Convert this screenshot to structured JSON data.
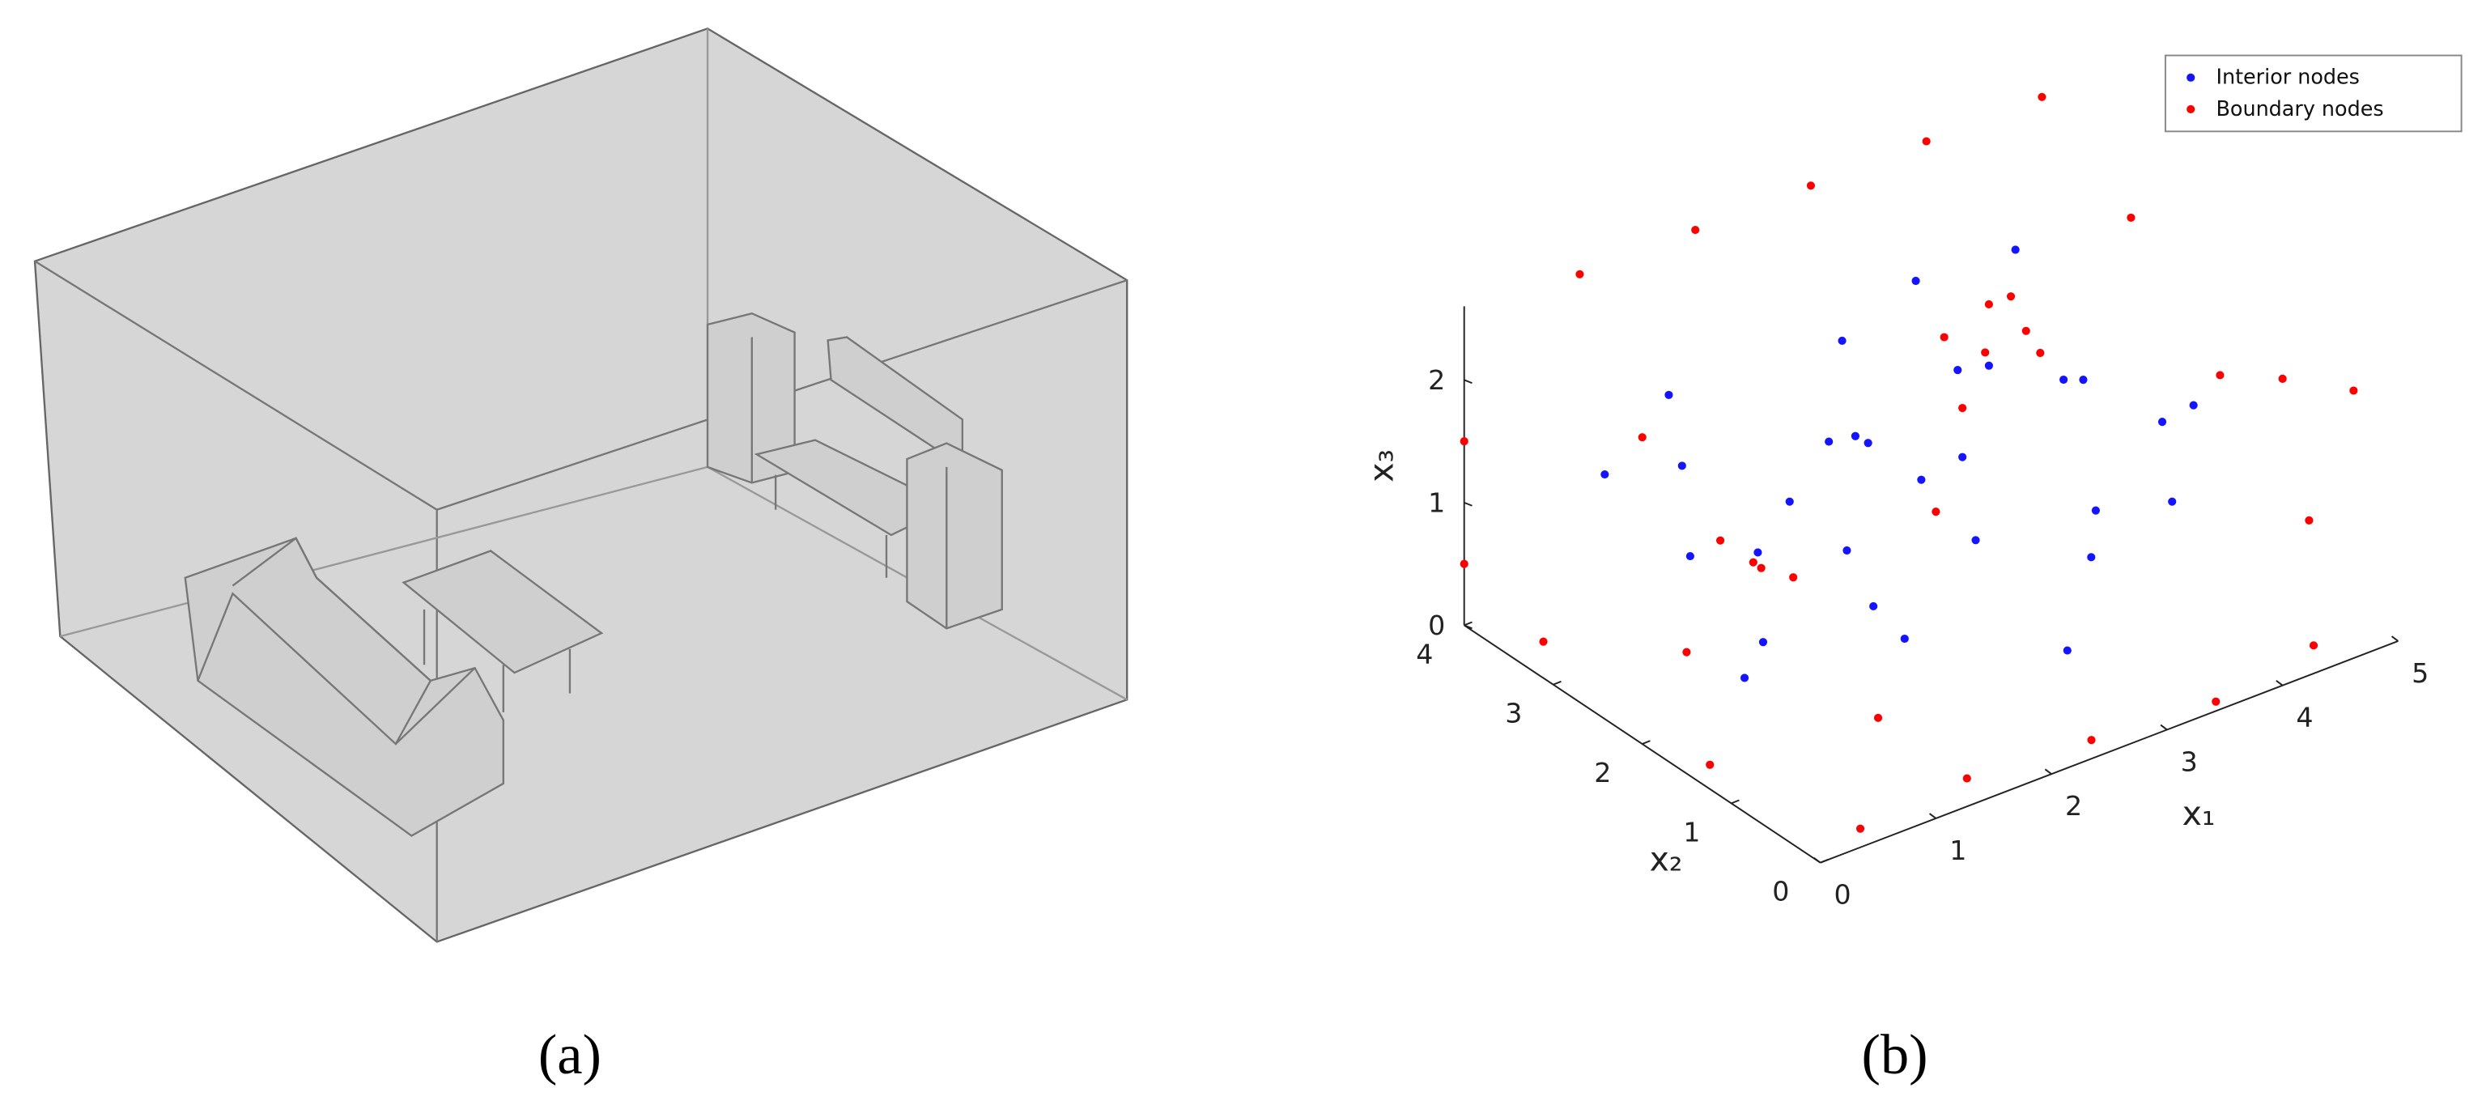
{
  "panel_labels": [
    "(a)",
    "(b)"
  ],
  "chart_data": {
    "type": "scatter3d",
    "xlabel": "x₁",
    "ylabel": "x₂",
    "zlabel": "x₃",
    "xlim": [
      0,
      5
    ],
    "ylim": [
      0,
      4
    ],
    "zlim": [
      0,
      2.6
    ],
    "xticks": [
      0,
      1,
      2,
      3,
      4,
      5
    ],
    "yticks": [
      0,
      1,
      2,
      3,
      4
    ],
    "zticks": [
      0,
      1,
      2
    ],
    "legend": "upper right",
    "series": [
      {
        "name": "Interior nodes",
        "color": "#1414ff",
        "x": [
          1,
          1.5,
          2,
          2.5,
          3,
          3.5,
          4,
          1,
          2,
          3,
          0.5,
          4.5,
          2.5,
          1.5,
          3.5,
          2,
          3,
          4,
          1,
          2.8,
          0.8,
          3.8,
          2.2,
          1.8,
          4.2,
          3.2,
          1.2,
          2.6,
          3.6,
          0.6
        ],
        "y": [
          2,
          1,
          2.5,
          1.5,
          2,
          3,
          1,
          3,
          1,
          3.5,
          1.5,
          2,
          3,
          3.5,
          1.5,
          2,
          0.8,
          3,
          1,
          2.5,
          2.5,
          2.2,
          3.2,
          1.8,
          1.5,
          1.2,
          2.2,
          0.6,
          3.6,
          3.2
        ],
        "z": [
          1.2,
          0.8,
          1.5,
          1,
          2,
          1.3,
          1.8,
          2,
          2.1,
          0.7,
          0.6,
          1,
          1.9,
          1,
          0.5,
          0.4,
          1.4,
          2.1,
          1.7,
          0.9,
          1,
          1.5,
          0.6,
          1.9,
          0.7,
          2.2,
          0.3,
          0.5,
          1.7,
          1.4
        ]
      },
      {
        "name": "Boundary nodes",
        "color": "#ff0000",
        "x": [
          0.5,
          1.5,
          2.5,
          3.5,
          4.5,
          5,
          5,
          5,
          5,
          0.3,
          1,
          0.2,
          1.8,
          1.6,
          2,
          1.5,
          4.2,
          4.4,
          4.6,
          4,
          4.5,
          1,
          2,
          3,
          4,
          0,
          0,
          2,
          3,
          1,
          4,
          5,
          0,
          0.5
        ],
        "y": [
          0.2,
          0.3,
          0.2,
          0.1,
          0.3,
          1,
          2,
          3,
          0.5,
          3.5,
          2.8,
          1.5,
          3,
          3.2,
          2.9,
          2.7,
          3.6,
          3.4,
          3.5,
          3.8,
          3.7,
          4,
          4,
          4,
          4,
          4,
          4,
          1,
          2,
          0,
          0,
          4,
          2,
          0
        ],
        "z": [
          0,
          0,
          0,
          0,
          0,
          0.5,
          1.2,
          2,
          1.8,
          0,
          0,
          0,
          0.3,
          0.5,
          0.2,
          0.6,
          0.9,
          1.1,
          0.8,
          1,
          1.2,
          2.5,
          2.5,
          2.5,
          2.5,
          1.5,
          0.5,
          2.5,
          2.5,
          2.5,
          2.5,
          2.5,
          2.5,
          1
        ]
      }
    ]
  }
}
